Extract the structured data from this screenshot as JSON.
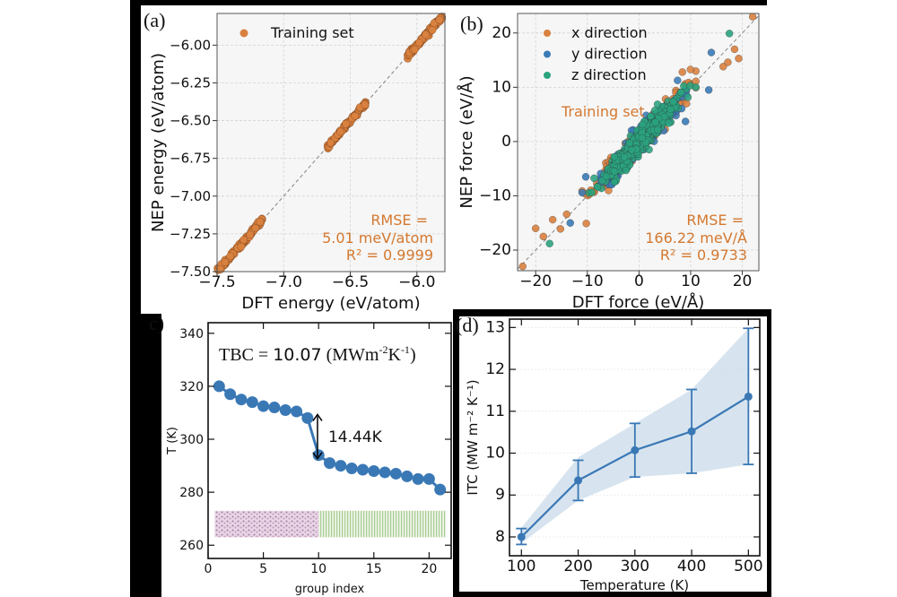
{
  "colors": {
    "orange": "#d9813f",
    "blue": "#3a7bb8",
    "green": "#2aa37f",
    "annot_orange": "#d4782f",
    "line_blue": "#3a78b5",
    "band": "#c9dbea"
  },
  "chart_data": [
    {
      "panel_label": "(a)",
      "type": "scatter",
      "xlabel": "DFT energy (eV/atom)",
      "ylabel": "NEP energy (eV/atom)",
      "xlim": [
        -7.5,
        -5.79
      ],
      "ylim": [
        -7.5,
        -5.79
      ],
      "xticks": [
        -7.5,
        -7.0,
        -6.5,
        -6.0
      ],
      "xtick_labels": [
        "−7.5",
        "−7.0",
        "−6.5",
        "−6.0"
      ],
      "yticks": [
        -7.5,
        -7.25,
        -7.0,
        -6.75,
        -6.5,
        -6.25,
        -6.0
      ],
      "ytick_labels": [
        "−7.50",
        "−7.25",
        "−7.00",
        "−6.75",
        "−6.50",
        "−6.25",
        "−6.00"
      ],
      "grid": true,
      "legend": {
        "placement": "top-left",
        "entries": [
          "Training set"
        ]
      },
      "series": [
        {
          "name": "Training set",
          "color": "#d9813f",
          "clusters": [
            [
              -7.5,
              -7.15
            ],
            [
              -6.67,
              -6.38
            ],
            [
              -6.07,
              -5.81
            ]
          ]
        }
      ],
      "reference_line": "y = x",
      "annotations": [
        "RMSE =",
        "5.01 meV/atom",
        "R² = 0.9999"
      ]
    },
    {
      "panel_label": "(b)",
      "type": "scatter",
      "xlabel": "DFT force (eV/Å)",
      "ylabel": "NEP force (eV/Å)",
      "xlim": [
        -23.5,
        23.2
      ],
      "ylim": [
        -23.8,
        23.6
      ],
      "xticks": [
        -20,
        -10,
        0,
        10,
        20
      ],
      "xtick_labels": [
        "−20",
        "−10",
        "0",
        "10",
        "20"
      ],
      "yticks": [
        -20,
        -10,
        0,
        10,
        20
      ],
      "ytick_labels": [
        "−20",
        "−10",
        "0",
        "10",
        "20"
      ],
      "grid": true,
      "legend": {
        "placement": "top-left",
        "entries": [
          "x direction",
          "y direction",
          "z direction"
        ]
      },
      "series": [
        {
          "name": "x direction",
          "color": "#d9813f",
          "outliers": [
            [
              22,
              23
            ],
            [
              -22.5,
              -23
            ],
            [
              -20,
              -16
            ],
            [
              -18.5,
              -17.5
            ],
            [
              19.3,
              15.3
            ],
            [
              18.5,
              17
            ],
            [
              17.2,
              14.6
            ],
            [
              16.3,
              13.8
            ],
            [
              -10.2,
              -15.1
            ],
            [
              -16.7,
              -14.4
            ],
            [
              -14,
              -13.4
            ],
            [
              8.4,
              12.8
            ],
            [
              -15.2,
              -16.1
            ]
          ]
        },
        {
          "name": "y direction",
          "color": "#3a7bb8",
          "outliers": [
            [
              14,
              16.4
            ],
            [
              13.5,
              9.5
            ],
            [
              9,
              3.7
            ],
            [
              -13.3,
              -15
            ],
            [
              -10.3,
              -6.5
            ]
          ]
        },
        {
          "name": "z direction",
          "color": "#2aa37f",
          "outliers": [
            [
              17.5,
              19.9
            ],
            [
              -17.3,
              -18.8
            ],
            [
              11,
              10
            ]
          ]
        }
      ],
      "reference_line": "y = x",
      "annotations": [
        "Training set",
        "RMSE =",
        "166.22 meV/Å",
        "R² = 0.9733"
      ]
    },
    {
      "panel_label": "c)",
      "type": "line",
      "xlabel": "group index",
      "ylabel": "T (K)",
      "xlim": [
        0,
        22
      ],
      "ylim": [
        255,
        344
      ],
      "xticks": [
        0,
        5,
        10,
        15,
        20
      ],
      "xtick_labels": [
        "0",
        "5",
        "10",
        "15",
        "20"
      ],
      "yticks": [
        260,
        280,
        300,
        320,
        340
      ],
      "ytick_labels": [
        "260",
        "280",
        "300",
        "320",
        "340"
      ],
      "grid": false,
      "x": [
        1,
        2,
        3,
        4,
        5,
        6,
        7,
        8,
        9,
        10,
        11,
        12,
        13,
        14,
        15,
        16,
        17,
        18,
        19,
        20,
        21
      ],
      "values": [
        320,
        317,
        315,
        314,
        312.5,
        312,
        311,
        310.5,
        308,
        294,
        291,
        290,
        289,
        288.5,
        288,
        287.5,
        287,
        286,
        285,
        285,
        281
      ],
      "title": {
        "prefix": "TBC = ",
        "value": "10.07",
        "unit_pre": " (MWm",
        "sup1": "-2",
        "unit_mid": "K",
        "sup2": "-1",
        "unit_post": ")"
      },
      "jump_annotation": {
        "text": "14.44K",
        "from": 308,
        "to": 294,
        "x": 9.9
      },
      "structure_inset": {
        "x_range": [
          0.6,
          21.5
        ],
        "y_range": [
          263,
          273
        ],
        "split": 10
      }
    },
    {
      "panel_label": "(d)",
      "type": "line",
      "xlabel": "Temperature (K)",
      "ylabel": "ITC (MW m⁻² K⁻¹)",
      "xlim": [
        79,
        520
      ],
      "ylim": [
        7.55,
        13.2
      ],
      "xticks": [
        100,
        200,
        300,
        400,
        500
      ],
      "xtick_labels": [
        "100",
        "200",
        "300",
        "400",
        "500"
      ],
      "yticks": [
        8,
        9,
        10,
        11,
        12,
        13
      ],
      "ytick_labels": [
        "8",
        "9",
        "10",
        "11",
        "12",
        "13"
      ],
      "grid": true,
      "x": [
        100,
        200,
        300,
        400,
        500
      ],
      "values": [
        8.0,
        9.35,
        10.07,
        10.52,
        11.35
      ],
      "err_low": [
        7.82,
        8.87,
        9.43,
        9.52,
        9.73
      ],
      "err_high": [
        8.2,
        9.83,
        10.71,
        11.52,
        12.98
      ],
      "band_low": [
        7.85,
        8.87,
        9.43,
        9.52,
        9.73
      ],
      "band_high": [
        8.22,
        9.9,
        10.71,
        11.52,
        12.98
      ]
    }
  ]
}
